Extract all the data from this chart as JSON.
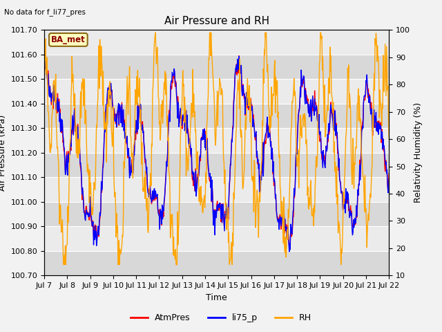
{
  "title": "Air Pressure and RH",
  "no_data_text": "No data for f_li77_pres",
  "legend_label": "BA_met",
  "xlabel": "Time",
  "ylabel_left": "Air Pressure (kPa)",
  "ylabel_right": "Relativity Humidity (%)",
  "ylim_left": [
    100.7,
    101.7
  ],
  "ylim_right": [
    10,
    100
  ],
  "yticks_left": [
    100.7,
    100.8,
    100.9,
    101.0,
    101.1,
    101.2,
    101.3,
    101.4,
    101.5,
    101.6,
    101.7
  ],
  "yticks_right": [
    10,
    20,
    30,
    40,
    50,
    60,
    70,
    80,
    90,
    100
  ],
  "xtick_labels": [
    "Jul 7",
    "Jul 8",
    "Jul 9",
    "Jul 10",
    "Jul 11",
    "Jul 12",
    "Jul 13",
    "Jul 14",
    "Jul 15",
    "Jul 16",
    "Jul 17",
    "Jul 18",
    "Jul 19",
    "Jul 20",
    "Jul 21",
    "Jul 22"
  ],
  "color_atmpres": "#ff0000",
  "color_li75p": "#0000ff",
  "color_rh": "#ffa500",
  "bg_light": "#ebebeb",
  "bg_dark": "#d8d8d8",
  "grid_color": "#ffffff",
  "fig_bg": "#f2f2f2",
  "title_fontsize": 11,
  "label_fontsize": 9,
  "tick_fontsize": 8,
  "line_width": 1.0
}
